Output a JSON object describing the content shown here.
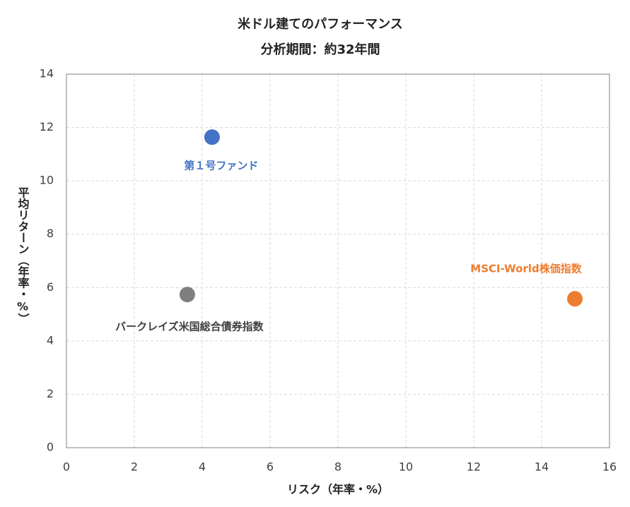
{
  "chart_data": {
    "type": "scatter",
    "title": "米ドル建てのパフォーマンス",
    "subtitle": "分析期間：約32年間",
    "x_label": "リスク（年率・%）",
    "y_label": "平均リターン（年率・%）",
    "xlim": [
      0,
      16
    ],
    "xticks": [
      0,
      2,
      4,
      6,
      8,
      10,
      12,
      14,
      16
    ],
    "ylim": [
      0,
      14
    ],
    "yticks": [
      0,
      2,
      4,
      6,
      8,
      10,
      12,
      14
    ],
    "grid": true,
    "series": [
      {
        "name": "第１号ファンド",
        "color": "#4472c4",
        "label_color": "#4472c4",
        "x": [
          4.29
        ],
        "values": [
          11.64
        ]
      },
      {
        "name": "バークレイズ米国総合債券指数",
        "color": "#7f7f7f",
        "label_color": "#404040",
        "x": [
          3.56
        ],
        "values": [
          5.74
        ]
      },
      {
        "name": "MSCI-World株価指数",
        "color": "#ed7d31",
        "label_color": "#ed7d31",
        "x": [
          14.98
        ],
        "values": [
          5.58
        ]
      }
    ]
  }
}
